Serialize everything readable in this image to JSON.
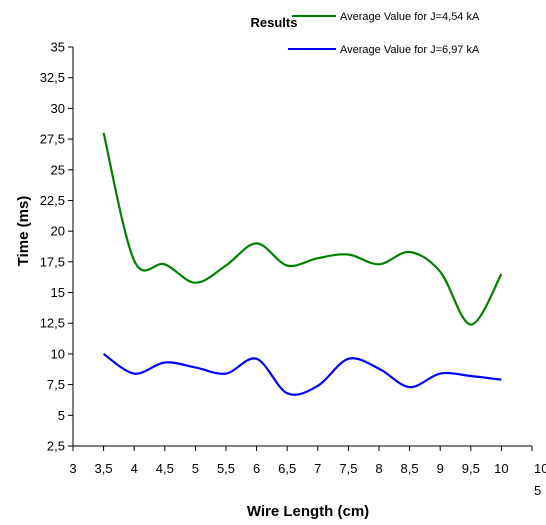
{
  "chart_data": {
    "type": "line",
    "title": "Results",
    "xlabel": "Wire Length (cm)",
    "ylabel": "Time  (ms)",
    "xlim": [
      3,
      10.5
    ],
    "ylim": [
      2.5,
      35
    ],
    "x_ticks": [
      3,
      3.5,
      4,
      4.5,
      5,
      5.5,
      6,
      6.5,
      7,
      7.5,
      8,
      8.5,
      9,
      9.5,
      10,
      10.5
    ],
    "x_tick_labels": [
      "3",
      "3,5",
      "4",
      "4,5",
      "5",
      "5,5",
      "6",
      "6,5",
      "7",
      "7,5",
      "8",
      "8,5",
      "9",
      "9,5",
      "10",
      "10,5"
    ],
    "y_ticks": [
      2.5,
      5,
      7.5,
      10,
      12.5,
      15,
      17.5,
      20,
      22.5,
      25,
      27.5,
      30,
      32.5,
      35
    ],
    "y_tick_labels": [
      "2,5",
      "5",
      "7,5",
      "10",
      "12,5",
      "15",
      "17,5",
      "20",
      "22,5",
      "25",
      "27,5",
      "30",
      "32,5",
      "35"
    ],
    "grid": false,
    "legend_position": "top-right",
    "x": [
      3.5,
      4,
      4.5,
      5,
      5.5,
      6,
      6.5,
      7,
      7.5,
      8,
      8.5,
      9,
      9.5,
      10
    ],
    "series": [
      {
        "name": "Average Value for J=4,54 kA",
        "color": "#008000",
        "values": [
          28.0,
          17.6,
          17.3,
          15.8,
          17.2,
          19.0,
          17.2,
          17.8,
          18.1,
          17.3,
          18.3,
          16.7,
          12.4,
          16.5
        ]
      },
      {
        "name": "Average Value for J=6,97 kA",
        "color": "#0000ff",
        "values": [
          10.0,
          8.4,
          9.3,
          8.9,
          8.4,
          9.6,
          6.8,
          7.4,
          9.6,
          8.8,
          7.3,
          8.4,
          8.2,
          7.9
        ]
      }
    ]
  }
}
